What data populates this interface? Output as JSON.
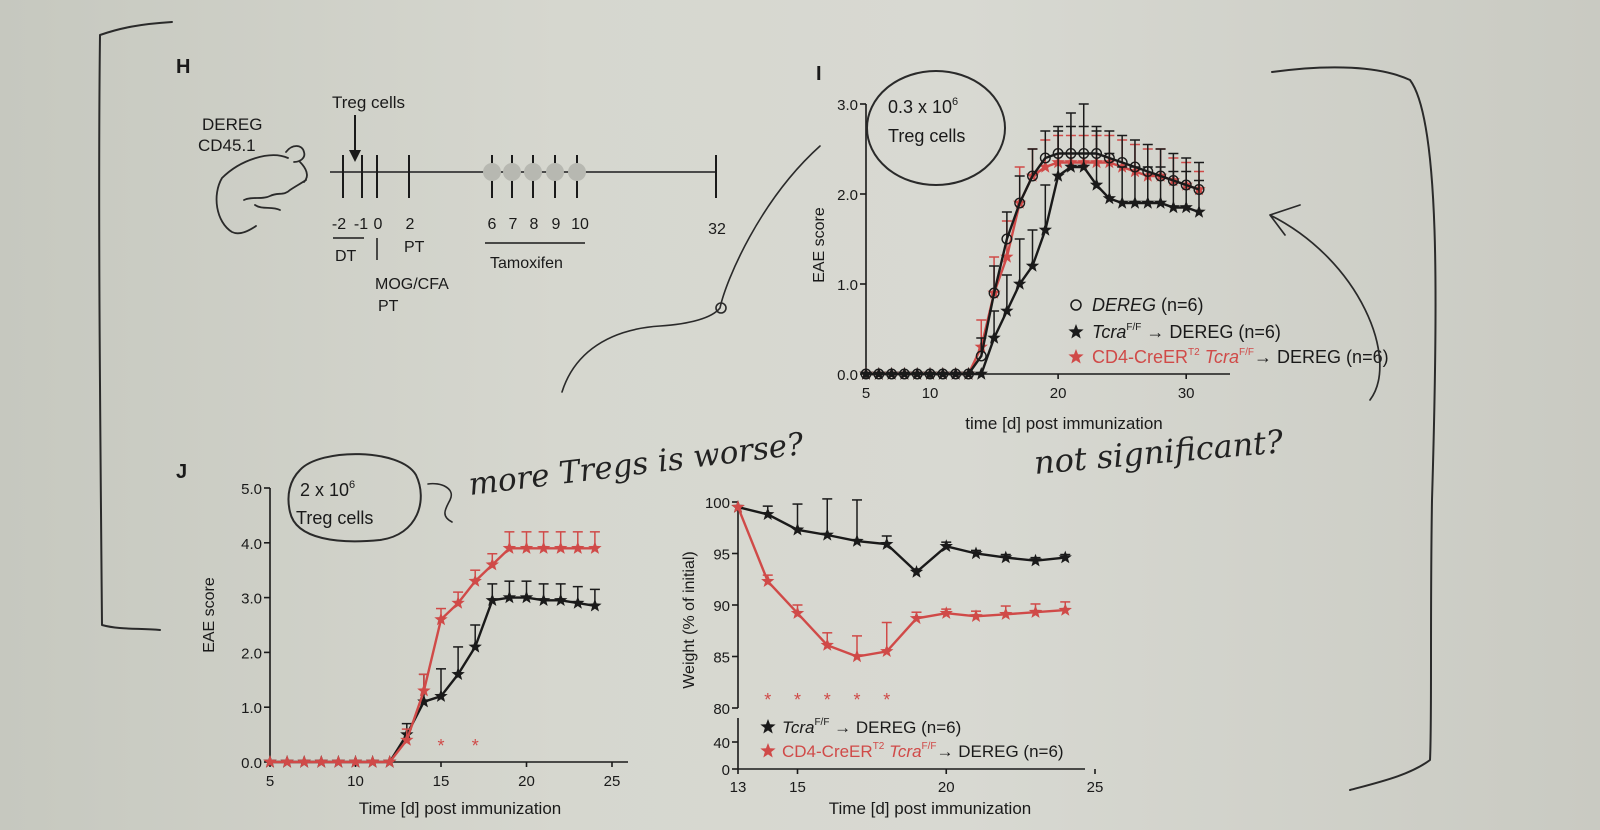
{
  "colors": {
    "black_series": "#1a1a1a",
    "red_series": "#d04a48",
    "paper": "#d4d5cd",
    "ink": "#2a2a2a"
  },
  "panelH": {
    "letter": "H",
    "mouse_label_1": "DEREG",
    "mouse_label_2": "CD45.1",
    "treg_label": "Treg cells",
    "ticks": [
      "-2",
      "-1",
      "0",
      "2",
      "6",
      "7",
      "8",
      "9",
      "10",
      "32"
    ],
    "dt_label": "DT",
    "pt_label": "PT",
    "mogcfa_label": "MOG/CFA",
    "pt2_label": "PT",
    "tamoxifen_label": "Tamoxifen"
  },
  "panelI": {
    "letter": "I",
    "annotation_line1": "0.3 x 10",
    "annotation_sup": "6",
    "annotation_line2": "Treg cells",
    "ylabel": "EAE score",
    "xlabel": "time [d] post immunization",
    "yticks": [
      "0.0",
      "1.0",
      "2.0",
      "3.0"
    ],
    "xticks": [
      "5",
      "10",
      "20",
      "30"
    ],
    "legend": [
      {
        "marker": "○",
        "name": "DEREG",
        "rest": " (n=6)"
      },
      {
        "marker": "★",
        "name": "Tcra",
        "sup": "F/F",
        "rest": " → DEREG (n=6)"
      },
      {
        "marker": "★",
        "name": "CD4-CreER",
        "sup": "T2",
        "rest2": " Tcra",
        "sup2": "F/F",
        "rest": "→ DEREG (n=6)"
      }
    ]
  },
  "panelJ": {
    "letter": "J",
    "annotation_line1": "2 x 10",
    "annotation_sup": "6",
    "annotation_line2": "Treg cells",
    "left": {
      "ylabel": "EAE score",
      "xlabel": "Time [d] post immunization",
      "yticks": [
        "0.0",
        "1.0",
        "2.0",
        "3.0",
        "4.0",
        "5.0"
      ],
      "xticks": [
        "5",
        "10",
        "15",
        "20",
        "25"
      ],
      "star": "*"
    },
    "right": {
      "ylabel": "Weight (% of initial)",
      "xlabel": "Time [d] post immunization",
      "yticks_upper": [
        "80",
        "85",
        "90",
        "95",
        "100"
      ],
      "yticks_lower": [
        "0",
        "40"
      ],
      "xticks": [
        "13",
        "15",
        "20",
        "25"
      ],
      "star": "*",
      "legend": [
        {
          "marker": "★",
          "name": "Tcra",
          "sup": "F/F",
          "rest": " → DEREG (n=6)"
        },
        {
          "marker": "★",
          "name": "CD4-CreER",
          "sup": "T2",
          "rest2": " Tcra",
          "sup2": "F/F",
          "rest": "→ DEREG (n=6)"
        }
      ]
    }
  },
  "handwriting": {
    "note1": "more Tregs is worse?",
    "note2": "not significant?"
  },
  "chart_data": [
    {
      "id": "I",
      "type": "line",
      "title": "",
      "xlabel": "time [d] post immunization",
      "ylabel": "EAE score",
      "xlim": [
        5,
        32
      ],
      "ylim": [
        0,
        3
      ],
      "series": [
        {
          "name": "DEREG (n=6)",
          "color": "black",
          "marker": "circle",
          "x": [
            5,
            6,
            7,
            8,
            9,
            10,
            11,
            12,
            13,
            14,
            15,
            16,
            17,
            18,
            19,
            20,
            21,
            22,
            23,
            24,
            25,
            26,
            27,
            28,
            29,
            30,
            31
          ],
          "y": [
            0,
            0,
            0,
            0,
            0,
            0,
            0,
            0,
            0,
            0.2,
            0.9,
            1.5,
            1.9,
            2.2,
            2.4,
            2.45,
            2.45,
            2.45,
            2.45,
            2.4,
            2.35,
            2.3,
            2.25,
            2.2,
            2.15,
            2.1,
            2.05
          ],
          "err": [
            0,
            0,
            0,
            0,
            0,
            0,
            0,
            0,
            0,
            0.2,
            0.3,
            0.3,
            0.3,
            0.3,
            0.3,
            0.3,
            0.3,
            0.3,
            0.3,
            0.3,
            0.3,
            0.3,
            0.3,
            0.3,
            0.3,
            0.3,
            0.3
          ]
        },
        {
          "name": "TcraF/F → DEREG (n=6)",
          "color": "black",
          "marker": "star",
          "x": [
            5,
            6,
            7,
            8,
            9,
            10,
            11,
            12,
            13,
            14,
            15,
            16,
            17,
            18,
            19,
            20,
            21,
            22,
            23,
            24,
            25,
            26,
            27,
            28,
            29,
            30,
            31
          ],
          "y": [
            0,
            0,
            0,
            0,
            0,
            0,
            0,
            0,
            0,
            0,
            0.4,
            0.7,
            1.0,
            1.2,
            1.6,
            2.2,
            2.3,
            2.3,
            2.1,
            1.95,
            1.9,
            1.9,
            1.9,
            1.9,
            1.85,
            1.85,
            1.8
          ],
          "err": [
            0,
            0,
            0,
            0,
            0,
            0,
            0,
            0,
            0,
            0,
            0.3,
            0.4,
            0.5,
            0.4,
            0.5,
            0.5,
            0.6,
            0.7,
            0.6,
            0.5,
            0.4,
            0.4,
            0.4,
            0.4,
            0.4,
            0.4,
            0.35
          ]
        },
        {
          "name": "CD4-CreERT2 TcraF/F → DEREG (n=6)",
          "color": "red",
          "marker": "star",
          "x": [
            5,
            6,
            7,
            8,
            9,
            10,
            11,
            12,
            13,
            14,
            15,
            16,
            17,
            18,
            19,
            20,
            21,
            22,
            23,
            24,
            25,
            26,
            27,
            28,
            29,
            30,
            31
          ],
          "y": [
            0,
            0,
            0,
            0,
            0,
            0,
            0,
            0,
            0,
            0.3,
            0.9,
            1.3,
            1.9,
            2.2,
            2.3,
            2.35,
            2.35,
            2.35,
            2.35,
            2.35,
            2.3,
            2.25,
            2.2,
            2.2,
            2.15,
            2.1,
            2.05
          ],
          "err": [
            0,
            0,
            0,
            0,
            0,
            0,
            0,
            0,
            0,
            0.3,
            0.4,
            0.4,
            0.4,
            0.3,
            0.3,
            0.3,
            0.3,
            0.3,
            0.3,
            0.3,
            0.3,
            0.3,
            0.3,
            0.3,
            0.25,
            0.25,
            0.2
          ]
        }
      ]
    },
    {
      "id": "J-left",
      "type": "line",
      "title": "",
      "xlabel": "Time [d] post immunization",
      "ylabel": "EAE score",
      "xlim": [
        5,
        25
      ],
      "ylim": [
        0,
        5
      ],
      "series": [
        {
          "name": "TcraF/F → DEREG (n=6)",
          "color": "black",
          "marker": "star",
          "x": [
            5,
            6,
            7,
            8,
            9,
            10,
            11,
            12,
            13,
            14,
            15,
            16,
            17,
            18,
            19,
            20,
            21,
            22,
            23,
            24
          ],
          "y": [
            0,
            0,
            0,
            0,
            0,
            0,
            0,
            0,
            0.5,
            1.1,
            1.2,
            1.6,
            2.1,
            2.95,
            3.0,
            3.0,
            2.95,
            2.95,
            2.9,
            2.85
          ],
          "err": [
            0,
            0,
            0,
            0,
            0,
            0,
            0,
            0,
            0.2,
            0.5,
            0.5,
            0.5,
            0.4,
            0.3,
            0.3,
            0.3,
            0.3,
            0.3,
            0.3,
            0.3
          ]
        },
        {
          "name": "CD4-CreERT2 TcraF/F → DEREG (n=6)",
          "color": "red",
          "marker": "star",
          "x": [
            5,
            6,
            7,
            8,
            9,
            10,
            11,
            12,
            13,
            14,
            15,
            16,
            17,
            18,
            19,
            20,
            21,
            22,
            23,
            24
          ],
          "y": [
            0,
            0,
            0,
            0,
            0,
            0,
            0,
            0,
            0.4,
            1.3,
            2.6,
            2.9,
            3.3,
            3.6,
            3.9,
            3.9,
            3.9,
            3.9,
            3.9,
            3.9
          ],
          "err": [
            0,
            0,
            0,
            0,
            0,
            0,
            0,
            0,
            0.2,
            0.3,
            0.2,
            0.2,
            0.2,
            0.2,
            0.3,
            0.3,
            0.3,
            0.3,
            0.3,
            0.3
          ]
        }
      ],
      "significance_x": [
        15,
        17
      ]
    },
    {
      "id": "J-right",
      "type": "line",
      "title": "",
      "xlabel": "Time [d] post immunization",
      "ylabel": "Weight (% of initial)",
      "xlim": [
        13,
        25
      ],
      "ylim": [
        80,
        100
      ],
      "series": [
        {
          "name": "TcraF/F → DEREG (n=6)",
          "color": "black",
          "marker": "star",
          "x": [
            13,
            14,
            15,
            16,
            17,
            18,
            19,
            20,
            21,
            22,
            23,
            24
          ],
          "y": [
            99.5,
            98.8,
            97.3,
            96.8,
            96.2,
            95.9,
            93.2,
            95.7,
            95.0,
            94.6,
            94.3,
            94.6
          ],
          "err": [
            0,
            0.8,
            2.5,
            3.5,
            4.0,
            0.8,
            0.3,
            0.4,
            0.3,
            0.3,
            0.3,
            0.3
          ]
        },
        {
          "name": "CD4-CreERT2 TcraF/F → DEREG (n=6)",
          "color": "red",
          "marker": "star",
          "x": [
            13,
            14,
            15,
            16,
            17,
            18,
            19,
            20,
            21,
            22,
            23,
            24
          ],
          "y": [
            99.5,
            92.3,
            89.2,
            86.1,
            85.0,
            85.5,
            88.7,
            89.2,
            88.9,
            89.1,
            89.3,
            89.5
          ],
          "err": [
            0,
            0.6,
            0.8,
            1.2,
            2.0,
            2.8,
            0.6,
            0.4,
            0.5,
            0.8,
            0.8,
            0.8
          ]
        }
      ],
      "significance_x": [
        14,
        15,
        16,
        17,
        18
      ]
    }
  ]
}
